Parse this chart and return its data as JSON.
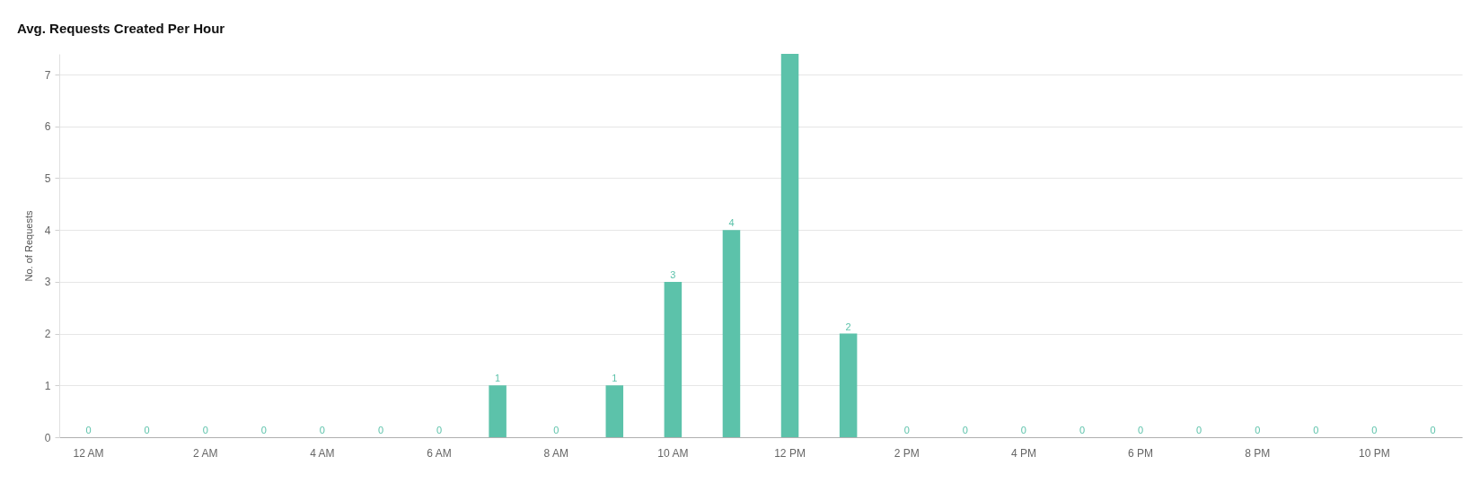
{
  "chart_data": {
    "type": "bar",
    "title": "Avg. Requests Created Per Hour",
    "ylabel": "No. of Requests",
    "categories": [
      "12 AM",
      null,
      "2 AM",
      null,
      "4 AM",
      null,
      "6 AM",
      null,
      "8 AM",
      null,
      "10 AM",
      null,
      "12 PM",
      null,
      "2 PM",
      null,
      "4 PM",
      null,
      "6 PM",
      null,
      "8 PM",
      null,
      "10 PM",
      null
    ],
    "values": [
      0,
      0,
      0,
      0,
      0,
      0,
      0,
      1,
      0,
      1,
      3,
      4,
      7.4,
      2,
      0,
      0,
      0,
      0,
      0,
      0,
      0,
      0,
      0,
      0
    ],
    "value_labels": [
      "0",
      "0",
      "0",
      "0",
      "0",
      "0",
      "0",
      "1",
      "0",
      "1",
      "3",
      "4",
      null,
      "2",
      "0",
      "0",
      "0",
      "0",
      "0",
      "0",
      "0",
      "0",
      "0",
      "0"
    ],
    "color": "#5cc2aa",
    "ylim": [
      0,
      7.4
    ],
    "yticks": [
      0,
      1,
      2,
      3,
      4,
      5,
      6,
      7
    ],
    "grid": "y"
  }
}
